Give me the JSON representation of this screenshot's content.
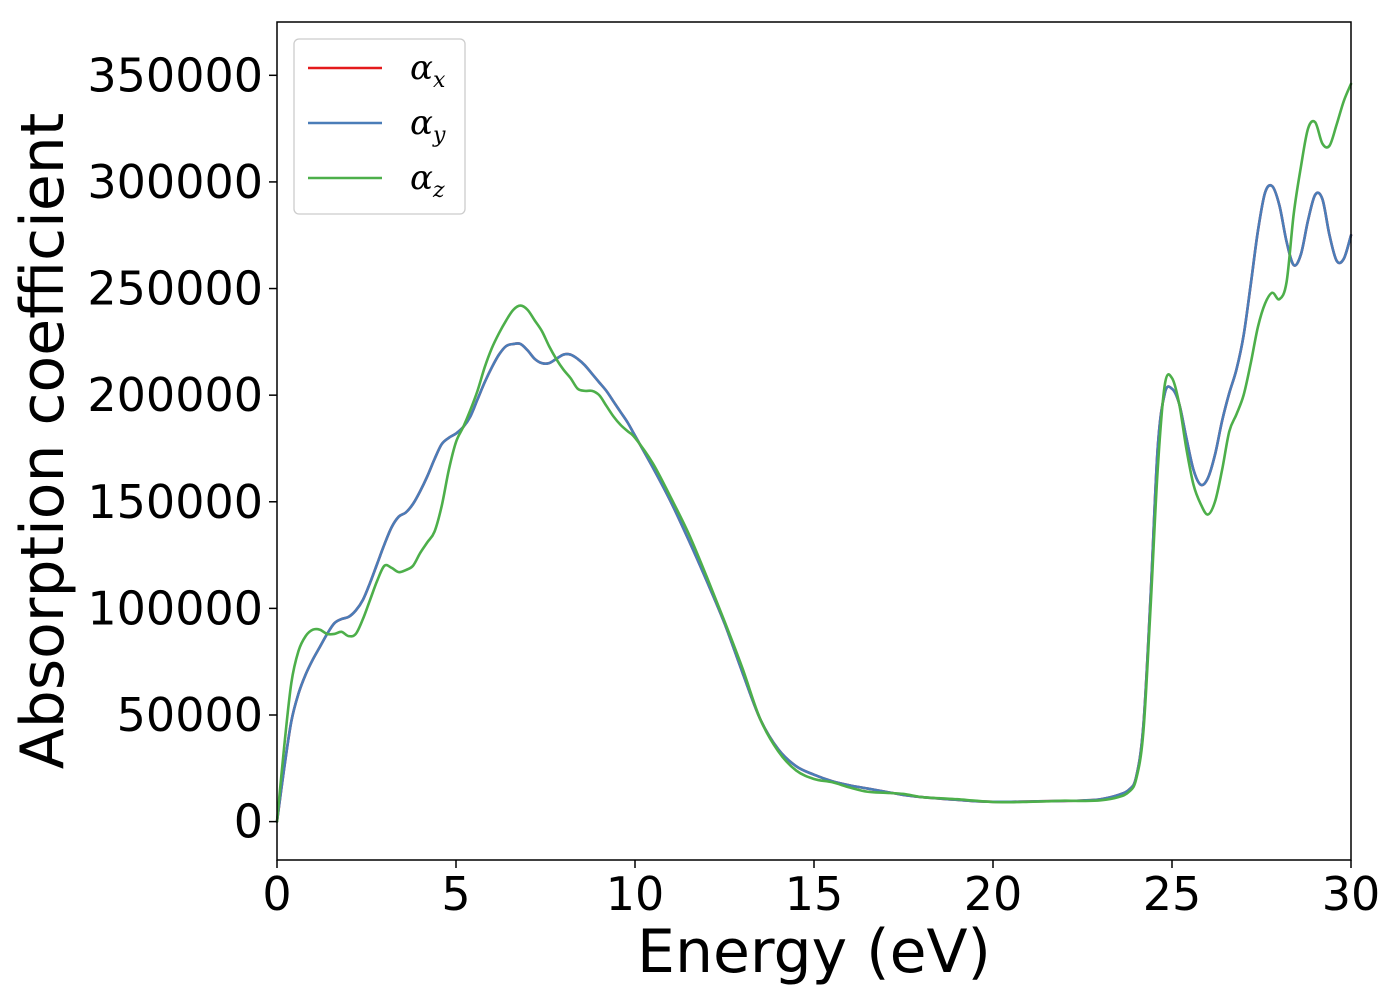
{
  "chart_data": {
    "type": "line",
    "title": "",
    "xlabel": "Energy (eV)",
    "ylabel": "Absorption coefficient",
    "xlim": [
      0,
      30
    ],
    "ylim": [
      -18000,
      375000
    ],
    "xticks": [
      0,
      5,
      10,
      15,
      20,
      25,
      30
    ],
    "xtick_labels": [
      "0",
      "5",
      "10",
      "15",
      "20",
      "25",
      "30"
    ],
    "yticks": [
      0,
      50000,
      100000,
      150000,
      200000,
      250000,
      300000,
      350000
    ],
    "ytick_labels": [
      "0",
      "50000",
      "100000",
      "150000",
      "200000",
      "250000",
      "300000",
      "350000"
    ],
    "grid": false,
    "legend_position": "top-left",
    "series": [
      {
        "name": "α_x",
        "label_base": "α",
        "label_sub": "x",
        "color": "#e41a1c",
        "x": [
          0,
          0.2,
          0.4,
          0.6,
          0.8,
          1.0,
          1.2,
          1.4,
          1.6,
          1.8,
          2.0,
          2.2,
          2.4,
          2.6,
          2.8,
          3.0,
          3.2,
          3.4,
          3.6,
          3.8,
          4.0,
          4.2,
          4.4,
          4.6,
          4.8,
          5.0,
          5.2,
          5.4,
          5.6,
          5.8,
          6.0,
          6.2,
          6.4,
          6.6,
          6.8,
          7.0,
          7.2,
          7.4,
          7.6,
          7.8,
          8.0,
          8.2,
          8.4,
          8.6,
          8.8,
          9.0,
          9.2,
          9.4,
          9.6,
          9.8,
          10.0,
          10.5,
          11.0,
          11.5,
          12.0,
          12.5,
          13.0,
          13.5,
          14.0,
          14.5,
          15.0,
          15.5,
          16.0,
          16.5,
          17.0,
          17.5,
          18.0,
          18.5,
          19.0,
          19.5,
          20.0,
          20.5,
          21.0,
          21.5,
          22.0,
          22.5,
          23.0,
          23.5,
          23.8,
          24.0,
          24.2,
          24.4,
          24.6,
          24.8,
          25.0,
          25.2,
          25.4,
          25.6,
          25.8,
          26.0,
          26.2,
          26.4,
          26.6,
          26.8,
          27.0,
          27.2,
          27.4,
          27.6,
          27.8,
          28.0,
          28.2,
          28.4,
          28.6,
          28.8,
          29.0,
          29.2,
          29.4,
          29.6,
          29.8,
          30.0
        ],
        "y": [
          0,
          25000,
          47000,
          60000,
          69000,
          76000,
          82000,
          88000,
          93000,
          95000,
          96000,
          99000,
          104000,
          112000,
          121000,
          130000,
          138000,
          143000,
          145000,
          149000,
          155000,
          162000,
          170000,
          177000,
          180000,
          182000,
          185000,
          190000,
          198000,
          206000,
          213000,
          219000,
          223000,
          224000,
          224000,
          221000,
          217000,
          215000,
          215000,
          217000,
          219000,
          219000,
          217000,
          214000,
          210000,
          206000,
          202000,
          197000,
          192000,
          187000,
          181000,
          166000,
          150000,
          132000,
          113000,
          93000,
          70000,
          48000,
          34000,
          26000,
          22000,
          19000,
          17000,
          15500,
          14000,
          12500,
          11500,
          10800,
          10200,
          9600,
          9300,
          9300,
          9400,
          9600,
          9700,
          9900,
          10500,
          12500,
          15000,
          21000,
          45000,
          105000,
          175000,
          201000,
          203000,
          196000,
          180000,
          165000,
          158000,
          161000,
          172000,
          188000,
          201000,
          212000,
          228000,
          252000,
          277000,
          295000,
          298000,
          289000,
          272000,
          261000,
          266000,
          282000,
          294000,
          292000,
          275000,
          263000,
          264000,
          275000
        ]
      },
      {
        "name": "α_y",
        "label_base": "α",
        "label_sub": "y",
        "color": "#4a7db8",
        "x": [
          0,
          0.2,
          0.4,
          0.6,
          0.8,
          1.0,
          1.2,
          1.4,
          1.6,
          1.8,
          2.0,
          2.2,
          2.4,
          2.6,
          2.8,
          3.0,
          3.2,
          3.4,
          3.6,
          3.8,
          4.0,
          4.2,
          4.4,
          4.6,
          4.8,
          5.0,
          5.2,
          5.4,
          5.6,
          5.8,
          6.0,
          6.2,
          6.4,
          6.6,
          6.8,
          7.0,
          7.2,
          7.4,
          7.6,
          7.8,
          8.0,
          8.2,
          8.4,
          8.6,
          8.8,
          9.0,
          9.2,
          9.4,
          9.6,
          9.8,
          10.0,
          10.5,
          11.0,
          11.5,
          12.0,
          12.5,
          13.0,
          13.5,
          14.0,
          14.5,
          15.0,
          15.5,
          16.0,
          16.5,
          17.0,
          17.5,
          18.0,
          18.5,
          19.0,
          19.5,
          20.0,
          20.5,
          21.0,
          21.5,
          22.0,
          22.5,
          23.0,
          23.5,
          23.8,
          24.0,
          24.2,
          24.4,
          24.6,
          24.8,
          25.0,
          25.2,
          25.4,
          25.6,
          25.8,
          26.0,
          26.2,
          26.4,
          26.6,
          26.8,
          27.0,
          27.2,
          27.4,
          27.6,
          27.8,
          28.0,
          28.2,
          28.4,
          28.6,
          28.8,
          29.0,
          29.2,
          29.4,
          29.6,
          29.8,
          30.0
        ],
        "y": [
          0,
          25000,
          47000,
          60000,
          69000,
          76000,
          82000,
          88000,
          93000,
          95000,
          96000,
          99000,
          104000,
          112000,
          121000,
          130000,
          138000,
          143000,
          145000,
          149000,
          155000,
          162000,
          170000,
          177000,
          180000,
          182000,
          185000,
          190000,
          198000,
          206000,
          213000,
          219000,
          223000,
          224000,
          224000,
          221000,
          217000,
          215000,
          215000,
          217000,
          219000,
          219000,
          217000,
          214000,
          210000,
          206000,
          202000,
          197000,
          192000,
          187000,
          181000,
          166000,
          150000,
          132000,
          113000,
          93000,
          70000,
          48000,
          34000,
          26000,
          22000,
          19000,
          17000,
          15500,
          14000,
          12500,
          11500,
          10800,
          10200,
          9600,
          9300,
          9300,
          9400,
          9600,
          9700,
          9900,
          10500,
          12500,
          15000,
          21000,
          45000,
          105000,
          175000,
          201000,
          203000,
          196000,
          180000,
          165000,
          158000,
          161000,
          172000,
          188000,
          201000,
          212000,
          228000,
          252000,
          277000,
          295000,
          298000,
          289000,
          272000,
          261000,
          266000,
          282000,
          294000,
          292000,
          275000,
          263000,
          264000,
          275000
        ]
      },
      {
        "name": "α_z",
        "label_base": "α",
        "label_sub": "z",
        "color": "#4daf4a",
        "x": [
          0,
          0.2,
          0.4,
          0.6,
          0.8,
          1.0,
          1.2,
          1.4,
          1.6,
          1.8,
          2.0,
          2.2,
          2.4,
          2.6,
          2.8,
          3.0,
          3.2,
          3.4,
          3.6,
          3.8,
          4.0,
          4.2,
          4.4,
          4.6,
          4.8,
          5.0,
          5.2,
          5.4,
          5.6,
          5.8,
          6.0,
          6.2,
          6.4,
          6.6,
          6.8,
          7.0,
          7.2,
          7.4,
          7.6,
          7.8,
          8.0,
          8.2,
          8.4,
          8.6,
          8.8,
          9.0,
          9.2,
          9.4,
          9.6,
          9.8,
          10.0,
          10.5,
          11.0,
          11.5,
          12.0,
          12.5,
          13.0,
          13.5,
          14.0,
          14.5,
          15.0,
          15.5,
          16.0,
          16.5,
          17.0,
          17.5,
          18.0,
          18.5,
          19.0,
          19.5,
          20.0,
          20.5,
          21.0,
          21.5,
          22.0,
          22.5,
          23.0,
          23.5,
          23.8,
          24.0,
          24.2,
          24.4,
          24.6,
          24.8,
          25.0,
          25.2,
          25.4,
          25.6,
          25.8,
          26.0,
          26.2,
          26.4,
          26.6,
          26.8,
          27.0,
          27.2,
          27.4,
          27.6,
          27.8,
          28.0,
          28.2,
          28.4,
          28.6,
          28.8,
          29.0,
          29.2,
          29.4,
          29.6,
          29.8,
          30.0
        ],
        "y": [
          0,
          35000,
          65000,
          80000,
          87000,
          90000,
          90000,
          88000,
          88000,
          89000,
          87000,
          88000,
          95000,
          104000,
          113000,
          120000,
          119000,
          117000,
          118000,
          120000,
          126000,
          131000,
          136000,
          148000,
          165000,
          178000,
          185000,
          193000,
          202000,
          213000,
          222000,
          229000,
          235000,
          240000,
          242000,
          240000,
          235000,
          230000,
          223000,
          217000,
          212000,
          208000,
          203000,
          202000,
          202000,
          200000,
          195000,
          190000,
          186000,
          183000,
          180000,
          168000,
          152000,
          135000,
          115000,
          94000,
          72000,
          48000,
          33000,
          24000,
          20000,
          18500,
          16000,
          14000,
          13500,
          13000,
          11500,
          11000,
          10500,
          9800,
          9200,
          9100,
          9300,
          9500,
          9800,
          9700,
          10000,
          11500,
          14000,
          20000,
          42000,
          100000,
          165000,
          205000,
          208000,
          196000,
          175000,
          158000,
          149000,
          144000,
          150000,
          165000,
          183000,
          191000,
          200000,
          215000,
          232000,
          243000,
          248000,
          245000,
          253000,
          285000,
          307000,
          325000,
          328000,
          318000,
          317000,
          327000,
          338000,
          346000
        ]
      }
    ]
  }
}
